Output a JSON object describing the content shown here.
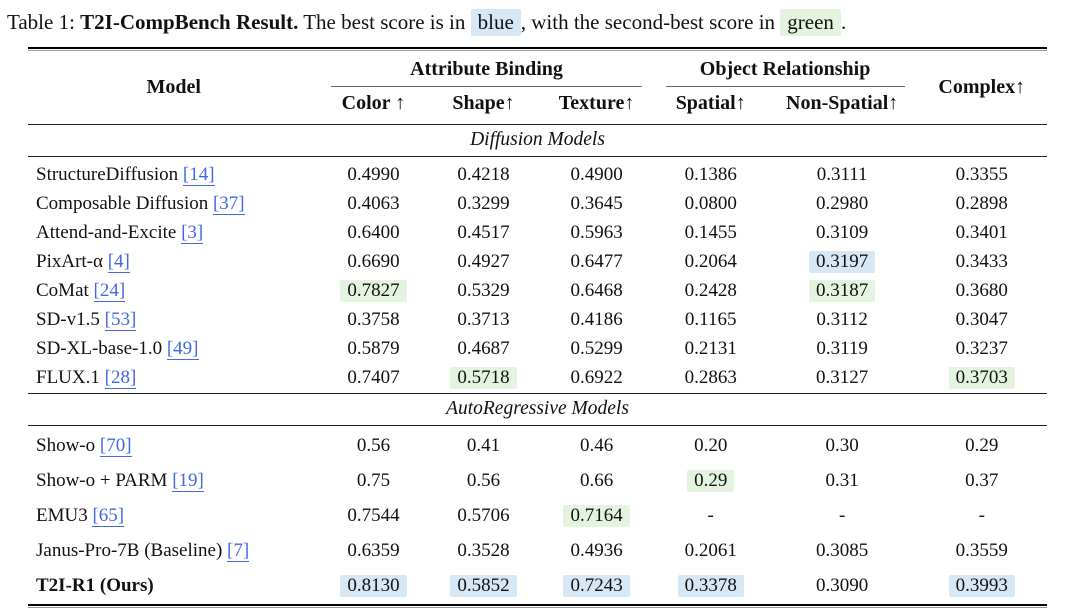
{
  "palette": {
    "best_blue": "#d8e7f4",
    "second_green": "#e4f3df",
    "link_blue": "#4169e1"
  },
  "caption": {
    "label": "Table 1:",
    "title_bold": "T2I-CompBench Result.",
    "text_before_blue": "The best score is in",
    "blue_word": "blue",
    "text_between": ", with the second-best score in",
    "green_word": "green",
    "text_end": "."
  },
  "header": {
    "model": "Model",
    "group_attribute": "Attribute Binding",
    "group_object": "Object Relationship",
    "complex": "Complex↑",
    "sub_color": "Color ↑",
    "sub_shape": "Shape↑",
    "sub_texture": "Texture↑",
    "sub_spatial": "Spatial↑",
    "sub_nonspatial": "Non-Spatial↑"
  },
  "sections": [
    {
      "label": "Diffusion Models",
      "rows": [
        {
          "model": "StructureDiffusion",
          "cite": "[14]",
          "bold": false,
          "values": [
            {
              "v": "0.4990",
              "hl": "none"
            },
            {
              "v": "0.4218",
              "hl": "none"
            },
            {
              "v": "0.4900",
              "hl": "none"
            },
            {
              "v": "0.1386",
              "hl": "none"
            },
            {
              "v": "0.3111",
              "hl": "none"
            },
            {
              "v": "0.3355",
              "hl": "none"
            }
          ]
        },
        {
          "model": "Composable Diffusion",
          "cite": "[37]",
          "bold": false,
          "values": [
            {
              "v": "0.4063",
              "hl": "none"
            },
            {
              "v": "0.3299",
              "hl": "none"
            },
            {
              "v": "0.3645",
              "hl": "none"
            },
            {
              "v": "0.0800",
              "hl": "none"
            },
            {
              "v": "0.2980",
              "hl": "none"
            },
            {
              "v": "0.2898",
              "hl": "none"
            }
          ]
        },
        {
          "model": "Attend-and-Excite",
          "cite": "[3]",
          "bold": false,
          "values": [
            {
              "v": "0.6400",
              "hl": "none"
            },
            {
              "v": "0.4517",
              "hl": "none"
            },
            {
              "v": "0.5963",
              "hl": "none"
            },
            {
              "v": "0.1455",
              "hl": "none"
            },
            {
              "v": "0.3109",
              "hl": "none"
            },
            {
              "v": "0.3401",
              "hl": "none"
            }
          ]
        },
        {
          "model": "PixArt-α",
          "cite": "[4]",
          "bold": false,
          "values": [
            {
              "v": "0.6690",
              "hl": "none"
            },
            {
              "v": "0.4927",
              "hl": "none"
            },
            {
              "v": "0.6477",
              "hl": "none"
            },
            {
              "v": "0.2064",
              "hl": "none"
            },
            {
              "v": "0.3197",
              "hl": "blue"
            },
            {
              "v": "0.3433",
              "hl": "none"
            }
          ]
        },
        {
          "model": "CoMat",
          "cite": "[24]",
          "bold": false,
          "values": [
            {
              "v": "0.7827",
              "hl": "green"
            },
            {
              "v": "0.5329",
              "hl": "none"
            },
            {
              "v": "0.6468",
              "hl": "none"
            },
            {
              "v": "0.2428",
              "hl": "none"
            },
            {
              "v": "0.3187",
              "hl": "green"
            },
            {
              "v": "0.3680",
              "hl": "none"
            }
          ]
        },
        {
          "model": "SD-v1.5",
          "cite": "[53]",
          "bold": false,
          "values": [
            {
              "v": "0.3758",
              "hl": "none"
            },
            {
              "v": "0.3713",
              "hl": "none"
            },
            {
              "v": "0.4186",
              "hl": "none"
            },
            {
              "v": "0.1165",
              "hl": "none"
            },
            {
              "v": "0.3112",
              "hl": "none"
            },
            {
              "v": "0.3047",
              "hl": "none"
            }
          ]
        },
        {
          "model": "SD-XL-base-1.0",
          "cite": "[49]",
          "bold": false,
          "values": [
            {
              "v": "0.5879",
              "hl": "none"
            },
            {
              "v": "0.4687",
              "hl": "none"
            },
            {
              "v": "0.5299",
              "hl": "none"
            },
            {
              "v": "0.2131",
              "hl": "none"
            },
            {
              "v": "0.3119",
              "hl": "none"
            },
            {
              "v": "0.3237",
              "hl": "none"
            }
          ]
        },
        {
          "model": "FLUX.1",
          "cite": "[28]",
          "bold": false,
          "values": [
            {
              "v": "0.7407",
              "hl": "none"
            },
            {
              "v": "0.5718",
              "hl": "green"
            },
            {
              "v": "0.6922",
              "hl": "none"
            },
            {
              "v": "0.2863",
              "hl": "none"
            },
            {
              "v": "0.3127",
              "hl": "none"
            },
            {
              "v": "0.3703",
              "hl": "green"
            }
          ]
        }
      ]
    },
    {
      "label": "AutoRegressive Models",
      "rows": [
        {
          "model": "Show-o",
          "cite": "[70]",
          "bold": false,
          "values": [
            {
              "v": "0.56",
              "hl": "none"
            },
            {
              "v": "0.41",
              "hl": "none"
            },
            {
              "v": "0.46",
              "hl": "none"
            },
            {
              "v": "0.20",
              "hl": "none"
            },
            {
              "v": "0.30",
              "hl": "none"
            },
            {
              "v": "0.29",
              "hl": "none"
            }
          ]
        },
        {
          "model": "Show-o + PARM",
          "cite": "[19]",
          "bold": false,
          "values": [
            {
              "v": "0.75",
              "hl": "none"
            },
            {
              "v": "0.56",
              "hl": "none"
            },
            {
              "v": "0.66",
              "hl": "none"
            },
            {
              "v": "0.29",
              "hl": "green"
            },
            {
              "v": "0.31",
              "hl": "none"
            },
            {
              "v": "0.37",
              "hl": "none"
            }
          ]
        },
        {
          "model": "EMU3",
          "cite": "[65]",
          "bold": false,
          "values": [
            {
              "v": "0.7544",
              "hl": "none"
            },
            {
              "v": "0.5706",
              "hl": "none"
            },
            {
              "v": "0.7164",
              "hl": "green"
            },
            {
              "v": "-",
              "hl": "none"
            },
            {
              "v": "-",
              "hl": "none"
            },
            {
              "v": "-",
              "hl": "none"
            }
          ]
        },
        {
          "model": "Janus-Pro-7B (Baseline)",
          "cite": "[7]",
          "bold": false,
          "values": [
            {
              "v": "0.6359",
              "hl": "none"
            },
            {
              "v": "0.3528",
              "hl": "none"
            },
            {
              "v": "0.4936",
              "hl": "none"
            },
            {
              "v": "0.2061",
              "hl": "none"
            },
            {
              "v": "0.3085",
              "hl": "none"
            },
            {
              "v": "0.3559",
              "hl": "none"
            }
          ]
        },
        {
          "model": "T2I-R1 (Ours)",
          "cite": "",
          "bold": true,
          "values": [
            {
              "v": "0.8130",
              "hl": "blue"
            },
            {
              "v": "0.5852",
              "hl": "blue"
            },
            {
              "v": "0.7243",
              "hl": "blue"
            },
            {
              "v": "0.3378",
              "hl": "blue"
            },
            {
              "v": "0.3090",
              "hl": "none"
            },
            {
              "v": "0.3993",
              "hl": "blue"
            }
          ]
        }
      ]
    }
  ]
}
